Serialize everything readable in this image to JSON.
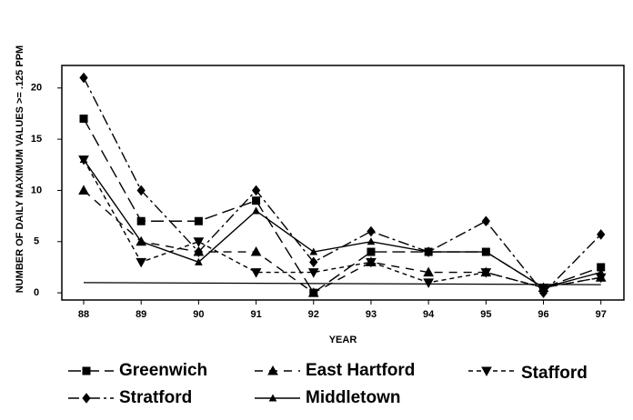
{
  "chart_data": {
    "type": "line",
    "x_label": "YEAR",
    "y_label": "NUMBER OF DAILY MAXIMUM VALUES >= .125 PPM",
    "x": [
      88,
      89,
      90,
      91,
      92,
      93,
      94,
      95,
      96,
      97
    ],
    "xlim": [
      87.62,
      97.4
    ],
    "xticks": [
      88,
      89,
      90,
      91,
      92,
      93,
      94,
      95,
      96,
      97
    ],
    "ylim": [
      -0.7,
      22.2
    ],
    "yticks": [
      0,
      5,
      10,
      15,
      20
    ],
    "reference_line": [
      1,
      0.8
    ],
    "series": [
      {
        "name": "Greenwich",
        "color": "#000000",
        "marker": "square",
        "dash": "14,6",
        "values": [
          17,
          7,
          7,
          9,
          0,
          4,
          4,
          4,
          0.5,
          2.5
        ]
      },
      {
        "name": "East Hartford",
        "color": "#000000",
        "marker": "triangle",
        "dash": "9,7",
        "values": [
          10,
          5,
          4,
          4,
          0,
          3,
          2,
          2,
          0.5,
          1.5
        ]
      },
      {
        "name": "Stafford",
        "color": "#000000",
        "marker": "triangle-down",
        "dash": "5,4",
        "values": [
          13,
          3,
          5,
          2,
          2,
          3,
          1,
          2,
          0.5,
          1.5
        ]
      },
      {
        "name": "Stratford",
        "color": "#000000",
        "marker": "diamond",
        "dash": "12,4,3,4",
        "values": [
          21,
          10,
          4,
          10,
          3,
          6,
          4,
          7,
          0,
          5.7
        ]
      },
      {
        "name": "Middletown",
        "color": "#000000",
        "marker": "small-triangle",
        "dash": "none",
        "values": [
          13,
          5,
          3,
          8,
          4,
          5,
          4,
          4,
          0.5,
          2
        ]
      }
    ]
  }
}
